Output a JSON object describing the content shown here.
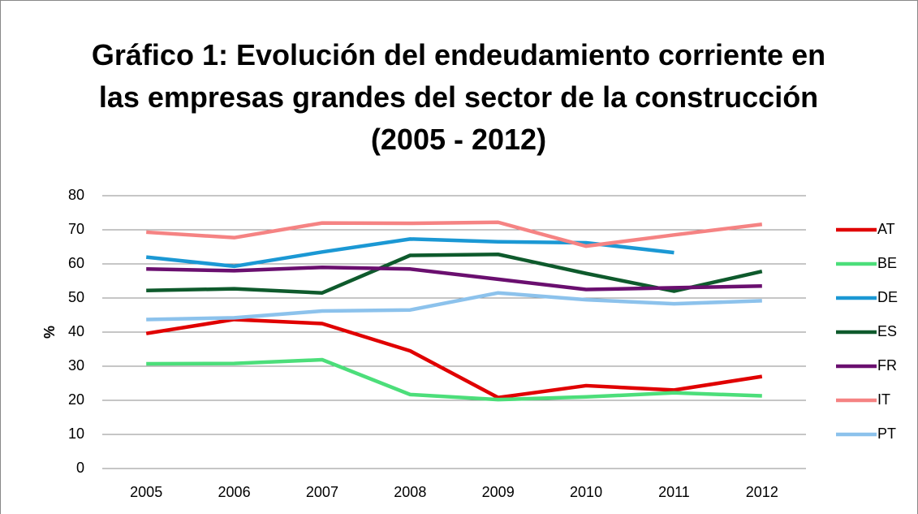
{
  "chart_data": {
    "type": "line",
    "title": "Gráfico 1: Evolución del endeudamiento corriente en las empresas grandes del sector de la construcción (2005 - 2012)",
    "y_label": "%",
    "categories": [
      "2005",
      "2006",
      "2007",
      "2008",
      "2009",
      "2010",
      "2011",
      "2012"
    ],
    "series": [
      {
        "name": "AT",
        "color": "#e00000",
        "values": [
          39.6,
          43.7,
          42.5,
          34.5,
          20.8,
          24.3,
          23,
          27
        ]
      },
      {
        "name": "BE",
        "color": "#4cde7a",
        "values": [
          30.7,
          30.8,
          31.9,
          21.7,
          20.2,
          21,
          22.2,
          21.3
        ]
      },
      {
        "name": "DE",
        "color": "#1b98d4",
        "values": [
          62,
          59.3,
          63.5,
          67.3,
          66.5,
          66.2,
          63.3,
          null
        ]
      },
      {
        "name": "ES",
        "color": "#0e5a2c",
        "values": [
          52.2,
          52.7,
          51.5,
          62.5,
          62.8,
          57.2,
          52,
          57.8
        ]
      },
      {
        "name": "FR",
        "color": "#6a0f6f",
        "values": [
          58.5,
          58,
          59,
          58.5,
          55.5,
          52.5,
          53,
          53.5
        ]
      },
      {
        "name": "IT",
        "color": "#f58383",
        "values": [
          69.3,
          67.7,
          72,
          71.9,
          72.2,
          65.2,
          68.5,
          71.6
        ]
      },
      {
        "name": "PT",
        "color": "#8cc2ec",
        "values": [
          43.7,
          44.2,
          46.2,
          46.5,
          51.5,
          49.5,
          48.3,
          49.2
        ]
      }
    ],
    "ylim": [
      0,
      80
    ],
    "yticks": [
      0,
      10,
      20,
      30,
      40,
      50,
      60,
      70,
      80
    ],
    "grid": true,
    "legend": "right"
  }
}
